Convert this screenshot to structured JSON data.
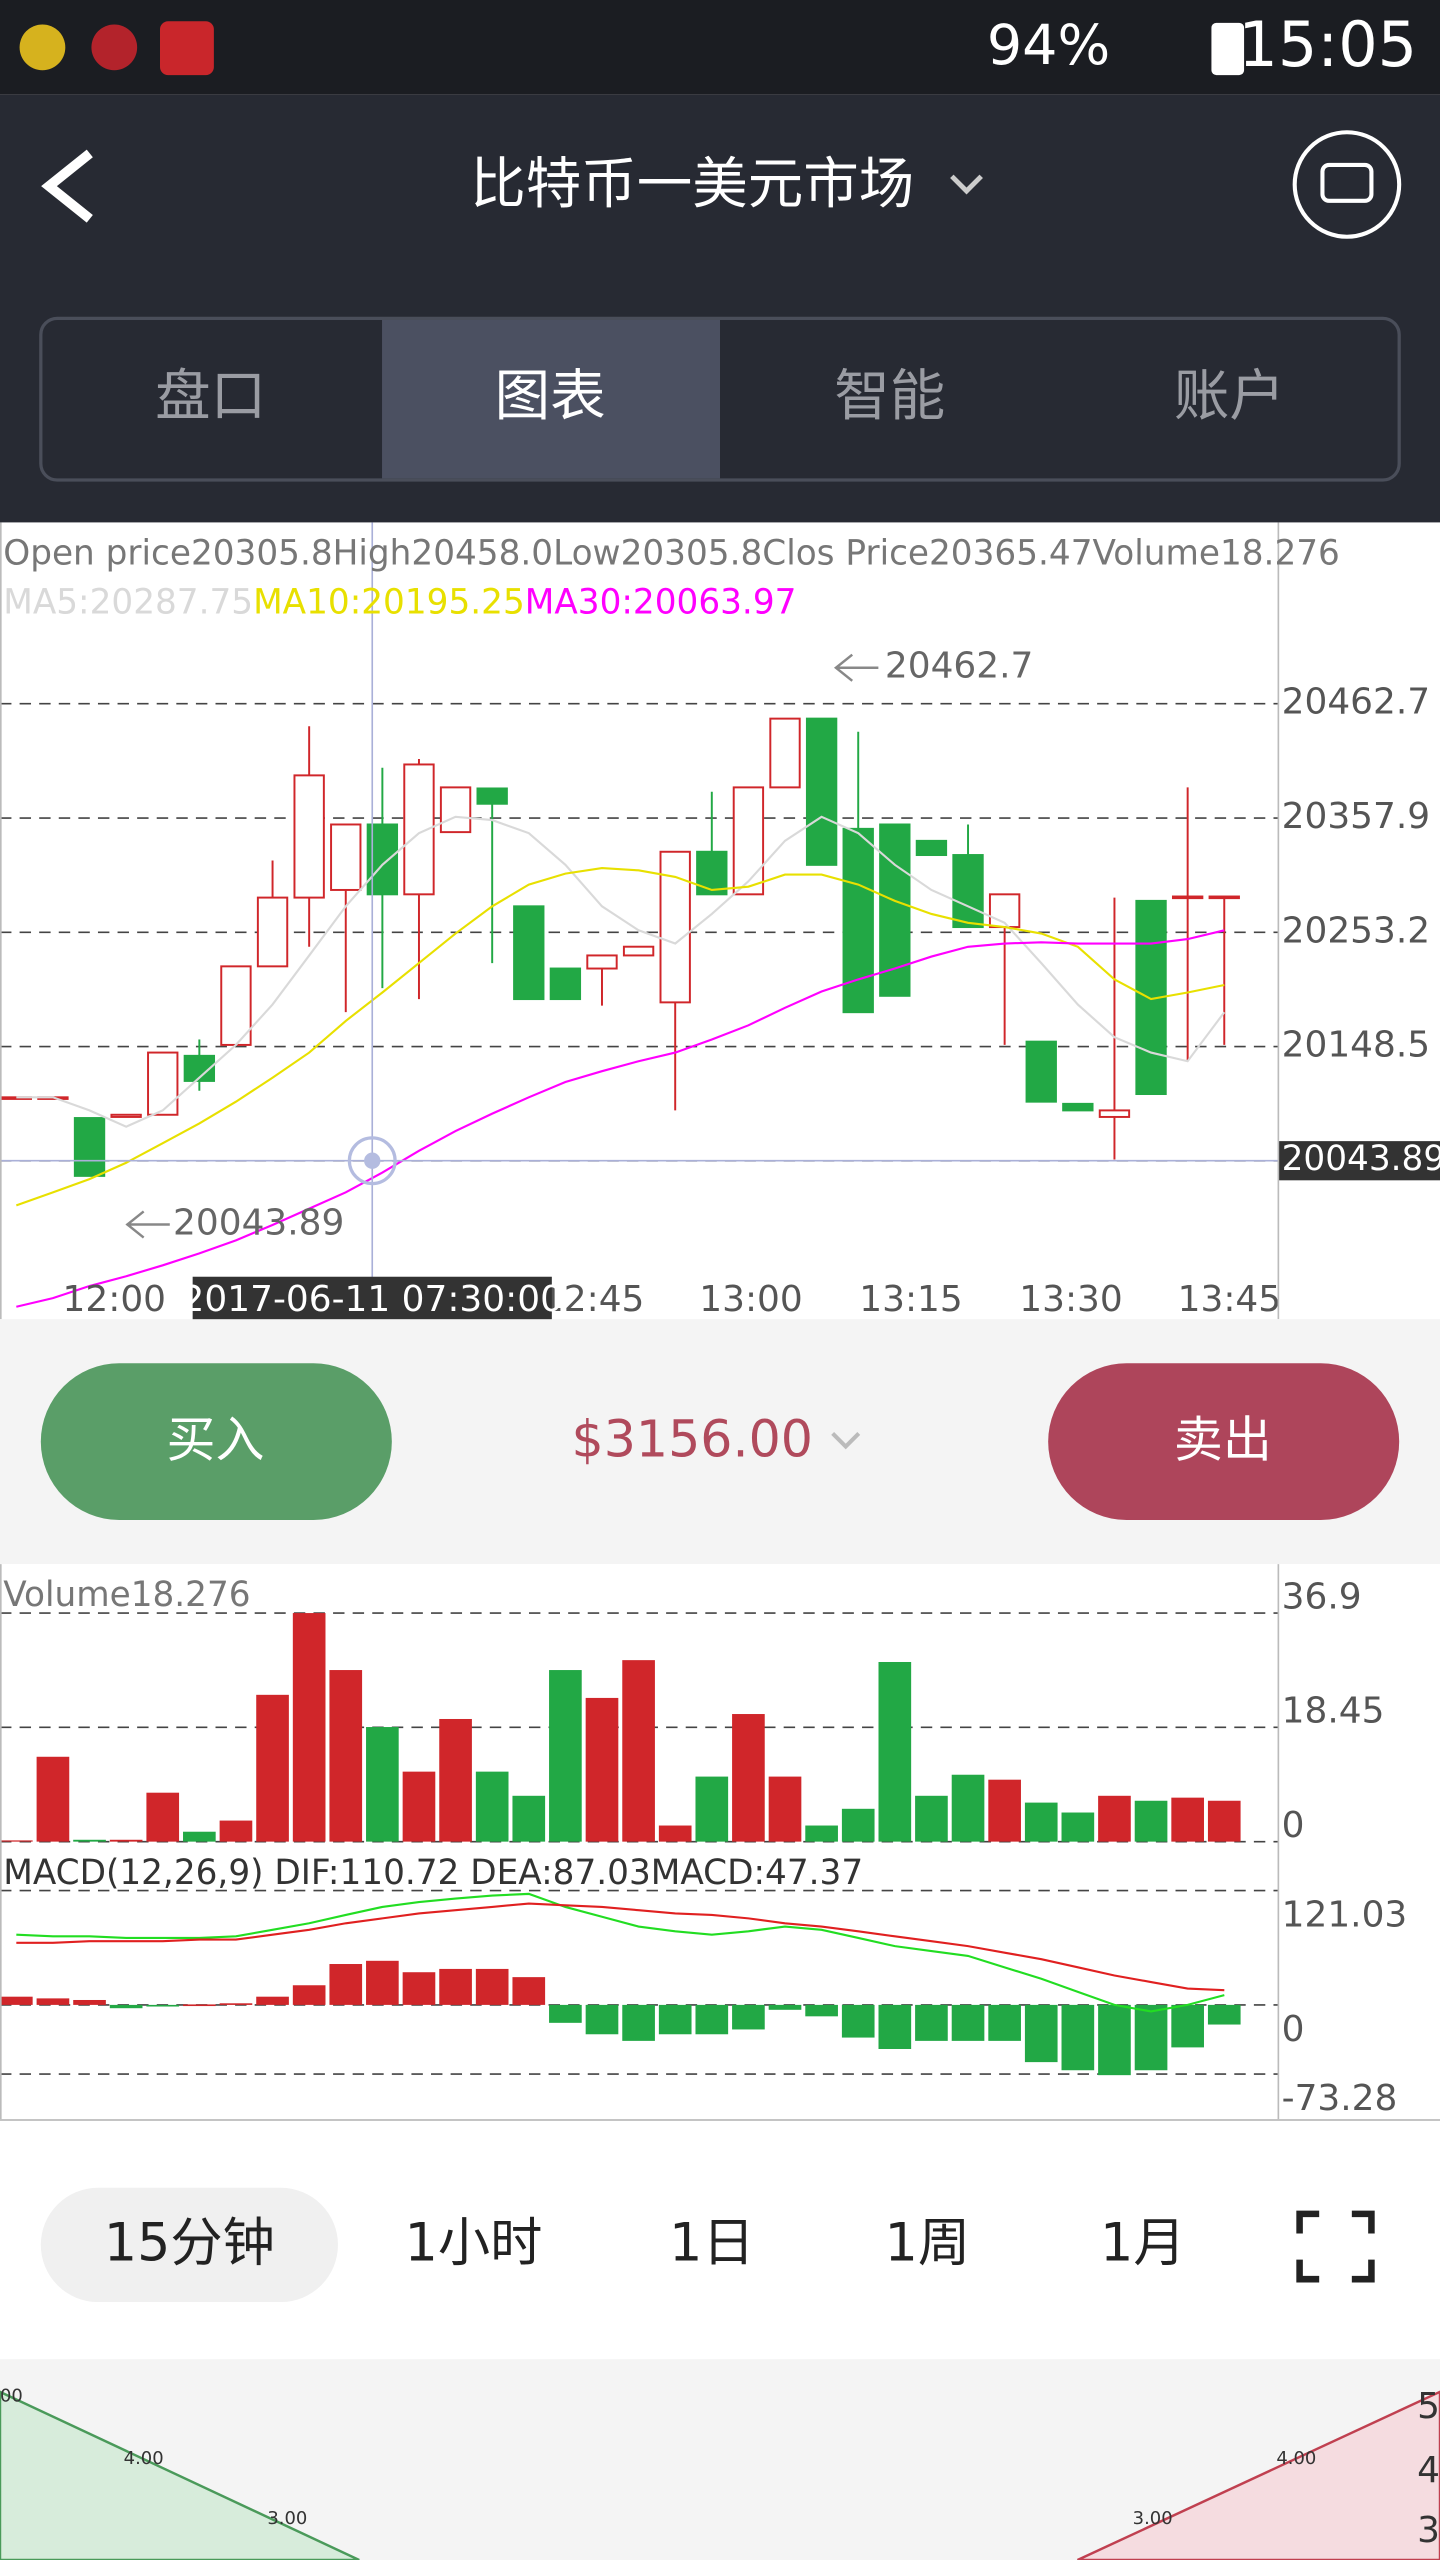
{
  "status_bar": {
    "battery": "94%",
    "time": "15:05"
  },
  "header": {
    "title": "比特币一美元市场"
  },
  "tabs": [
    "盘口",
    "图表",
    "智能",
    "账户"
  ],
  "kline": {
    "info": "Open price20305.8High20458.0Low20305.8Clos Price20365.47Volume18.276",
    "ma_legend": [
      {
        "text": "MA5:20287.75",
        "color": "#d9d9d9"
      },
      {
        "text": "MA10:20195.25",
        "color": "#e8e000"
      },
      {
        "text": "MA30:20063.97",
        "color": "#ff00ff"
      }
    ],
    "price_ticks": [
      20462.7,
      20357.9,
      20253.2,
      20148.5,
      20043.8
    ],
    "times": [
      "12:00",
      "12:45",
      "13:00",
      "13:15",
      "13:30",
      "13:45"
    ],
    "max_label": 20462.7,
    "min_label": 20043.89,
    "crosshair": {
      "time": "2017-06-11 07:30:00",
      "price": 20043.89
    },
    "candles": [
      [
        20102,
        20102,
        20102,
        20102
      ],
      [
        20102,
        20102,
        20102,
        20102
      ],
      [
        20083,
        20083,
        20030,
        20030
      ],
      [
        20084,
        20086,
        20084,
        20086
      ],
      [
        20086,
        20143,
        20086,
        20143
      ],
      [
        20140,
        20155,
        20108,
        20117
      ],
      [
        20150,
        20222,
        20150,
        20222
      ],
      [
        20222,
        20319,
        20222,
        20285
      ],
      [
        20285,
        20442,
        20240,
        20397
      ],
      [
        20292,
        20352,
        20180,
        20352
      ],
      [
        20352,
        20404,
        20202,
        20288
      ],
      [
        20288,
        20412,
        20192,
        20407
      ],
      [
        20345,
        20386,
        20345,
        20386
      ],
      [
        20385,
        20385,
        20225,
        20371
      ],
      [
        20277,
        20277,
        20192,
        20192
      ],
      [
        20220,
        20220,
        20192,
        20192
      ],
      [
        20220,
        20232,
        20186,
        20232
      ],
      [
        20232,
        20240,
        20232,
        20240
      ],
      [
        20189,
        20327,
        20090,
        20327
      ],
      [
        20327,
        20382,
        20288,
        20288
      ],
      [
        20288,
        20386,
        20288,
        20386
      ],
      [
        20386,
        20449,
        20386,
        20449
      ],
      [
        20449,
        20449,
        20315,
        20315
      ],
      [
        20348,
        20437,
        20180,
        20180
      ],
      [
        20352,
        20352,
        20195,
        20195
      ],
      [
        20337,
        20337,
        20324,
        20324
      ],
      [
        20324,
        20352,
        20258,
        20258
      ],
      [
        20258,
        20288,
        20150,
        20288
      ],
      [
        20153,
        20153,
        20098,
        20098
      ],
      [
        20096,
        20096,
        20090,
        20090
      ],
      [
        20084,
        20285,
        20045,
        20090
      ],
      [
        20282,
        20282,
        20105,
        20105
      ],
      [
        20285,
        20386,
        20135,
        20286
      ],
      [
        20286,
        20286,
        20150,
        20286
      ]
    ],
    "ma5": [
      20102,
      20102,
      20090,
      20075,
      20090,
      20120,
      20150,
      20187,
      20232,
      20277,
      20315,
      20344,
      20359,
      20356,
      20344,
      20315,
      20277,
      20255,
      20243,
      20270,
      20300,
      20337,
      20359,
      20344,
      20315,
      20292,
      20277,
      20262,
      20225,
      20187,
      20157,
      20143,
      20135,
      20180
    ],
    "ma10": [
      20003,
      20015,
      20027,
      20042,
      20060,
      20078,
      20098,
      20120,
      20143,
      20172,
      20198,
      20225,
      20252,
      20277,
      20297,
      20307,
      20312,
      20310,
      20304,
      20292,
      20295,
      20306,
      20306,
      20297,
      20282,
      20270,
      20262,
      20258,
      20252,
      20240,
      20210,
      20192,
      20198,
      20205
    ],
    "ma30": [
      19910,
      19918,
      19929,
      19938,
      19948,
      19959,
      19971,
      19985,
      20000,
      20015,
      20033,
      20053,
      20071,
      20087,
      20102,
      20116,
      20126,
      20135,
      20143,
      20155,
      20168,
      20184,
      20199,
      20210,
      20220,
      20231,
      20240,
      20243,
      20244,
      20243,
      20243,
      20243,
      20247,
      20255
    ]
  },
  "trade": {
    "buy": "买入",
    "price": "$3156.00",
    "sell": "卖出"
  },
  "volume": {
    "label": "Volume18.276",
    "ticks": [
      36.9,
      18.45,
      0
    ],
    "values": [
      0.2,
      13.7,
      0.3,
      0.3,
      7.9,
      1.6,
      3.4,
      23.7,
      36.9,
      27.7,
      18.5,
      11.3,
      19.8,
      11.3,
      7.4,
      27.7,
      23.2,
      29.3,
      2.6,
      10.5,
      20.6,
      10.5,
      2.6,
      5.3,
      29.0,
      7.4,
      10.8,
      10.0,
      6.3,
      4.7,
      7.4,
      6.6,
      7.1,
      6.6
    ]
  },
  "macd": {
    "label": "MACD(12,26,9) DIF:110.72 DEA:87.03MACD:47.37",
    "ticks": [
      121.03,
      0,
      -73.28
    ],
    "hist": [
      8.7,
      6.9,
      5.2,
      -3.5,
      -1.7,
      0.5,
      1.7,
      8.7,
      20.8,
      43.3,
      46.7,
      34.6,
      38.1,
      38.1,
      29.4,
      -19.0,
      -31.1,
      -38.1,
      -31.1,
      -31.1,
      -26.0,
      -5.2,
      -12.1,
      -34.6,
      -46.7,
      -38.1,
      -38.1,
      -38.1,
      -60.6,
      -69.2,
      -74.4,
      -69.2,
      -45.0,
      -20.8
    ],
    "dif": [
      74.4,
      72.7,
      72.7,
      70.9,
      70.9,
      70.9,
      72.7,
      79.6,
      86.5,
      95.2,
      103.8,
      109.0,
      112.5,
      115.9,
      117.6,
      103.8,
      93.4,
      83.0,
      77.9,
      74.4,
      77.9,
      83.0,
      79.6,
      70.9,
      62.3,
      57.1,
      51.9,
      39.8,
      27.7,
      13.8,
      0,
      -6.9,
      0,
      10.4
    ],
    "dea": [
      65.7,
      65.7,
      67.5,
      67.5,
      67.5,
      69.2,
      69.2,
      74.4,
      79.6,
      86.5,
      91.7,
      96.9,
      100.3,
      103.8,
      107.3,
      105.5,
      103.8,
      100.3,
      96.9,
      95.2,
      91.7,
      86.5,
      83.0,
      77.9,
      72.7,
      67.5,
      62.3,
      55.4,
      48.4,
      39.8,
      31.1,
      24.2,
      17.3,
      15.6
    ]
  },
  "intervals": [
    "15分钟",
    "1小时",
    "1日",
    "1周",
    "1月"
  ],
  "depth": {
    "left_labels": [
      "00",
      "4.00",
      "3.00"
    ],
    "right_labels": [
      "3.00",
      "4.00",
      "5",
      "4",
      "3"
    ]
  }
}
